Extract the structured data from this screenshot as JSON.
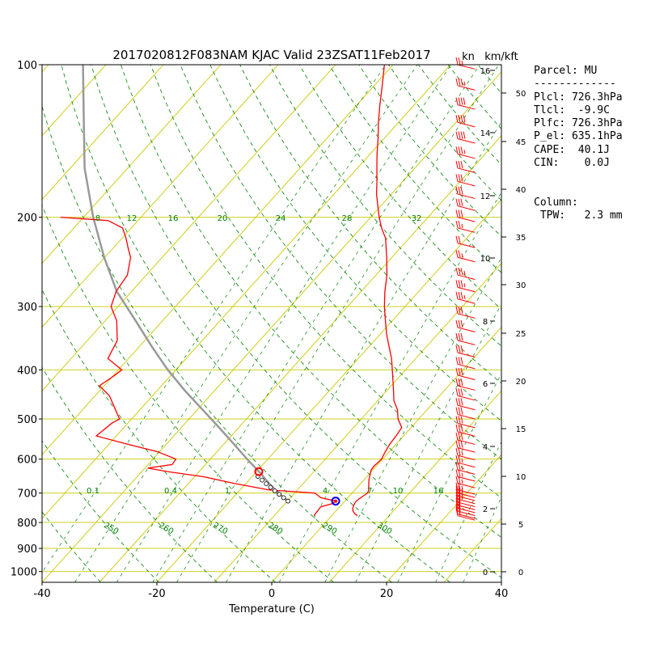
{
  "title": "2017020812F083NAM KJAC Valid 23ZSAT11Feb2017",
  "unit_kn": "kn",
  "unit_kmkft": "km/kft",
  "xlabel": "Temperature (C)",
  "params": [
    "Parcel: MU",
    "-------------",
    "Plcl: 726.3hPa",
    "Tlcl:  -9.9C",
    "Plfc: 726.3hPa",
    "P_el: 635.1hPa",
    "CAPE:  40.1J",
    "CIN:    0.0J",
    "",
    "",
    "Column:",
    " TPW:   2.3 mm"
  ],
  "chart_data": {
    "type": "skew-t",
    "xlim": [
      -40,
      40
    ],
    "ylim_hpa": [
      1050,
      100
    ],
    "x_ticks": [
      "-40",
      "-20",
      "0",
      "20",
      "40"
    ],
    "pressure_ticks": [
      "100",
      "200",
      "300",
      "400",
      "500",
      "600",
      "700",
      "800",
      "900",
      "1000"
    ],
    "km_ticks": [
      "0",
      "2",
      "4",
      "6",
      "8",
      "10",
      "12",
      "14",
      "16"
    ],
    "kft_ticks": [
      "0",
      "5",
      "10",
      "15",
      "20",
      "25",
      "30",
      "35",
      "40",
      "45",
      "50"
    ],
    "mixing_ratio_labels": [
      "0.1",
      "0.4",
      "1",
      "4",
      "7",
      "10",
      "16"
    ],
    "mixing_ratio_upper_labels": [
      "8",
      "12",
      "16",
      "20",
      "24",
      "28",
      "32"
    ],
    "dry_adiabat_labels": [
      "250",
      "260",
      "270",
      "280",
      "290",
      "300"
    ],
    "temperature": [
      [
        776,
        4.5
      ],
      [
        770,
        3.8
      ],
      [
        760,
        3.0
      ],
      [
        750,
        2.5
      ],
      [
        740,
        2.2
      ],
      [
        730,
        2.0
      ],
      [
        726,
        2.0
      ],
      [
        720,
        2.1
      ],
      [
        710,
        2.4
      ],
      [
        700,
        2.7
      ],
      [
        690,
        2.4
      ],
      [
        680,
        1.9
      ],
      [
        670,
        1.4
      ],
      [
        660,
        0.9
      ],
      [
        650,
        0.5
      ],
      [
        640,
        0.1
      ],
      [
        630,
        -0.3
      ],
      [
        620,
        -0.4
      ],
      [
        600,
        -0.2
      ],
      [
        580,
        -0.7
      ],
      [
        560,
        -1.1
      ],
      [
        540,
        -1.3
      ],
      [
        520,
        -1.6
      ],
      [
        500,
        -3.6
      ],
      [
        480,
        -5.1
      ],
      [
        460,
        -7.2
      ],
      [
        440,
        -8.8
      ],
      [
        420,
        -10.5
      ],
      [
        400,
        -12.3
      ],
      [
        380,
        -14.2
      ],
      [
        360,
        -16.5
      ],
      [
        340,
        -18.9
      ],
      [
        320,
        -21.2
      ],
      [
        300,
        -23.6
      ],
      [
        280,
        -25.9
      ],
      [
        260,
        -28.1
      ],
      [
        240,
        -30.9
      ],
      [
        220,
        -34.1
      ],
      [
        210,
        -36.4
      ],
      [
        200,
        -38.5
      ],
      [
        190,
        -40.5
      ],
      [
        180,
        -42.6
      ],
      [
        170,
        -44.5
      ],
      [
        160,
        -46.6
      ],
      [
        150,
        -48.8
      ],
      [
        140,
        -51.0
      ],
      [
        130,
        -53.5
      ],
      [
        120,
        -56.0
      ],
      [
        110,
        -58.6
      ],
      [
        100,
        -61.5
      ]
    ],
    "dewpoint": [
      [
        776,
        -3.1
      ],
      [
        760,
        -3.2
      ],
      [
        745,
        -3.3
      ],
      [
        735,
        -1.8
      ],
      [
        726,
        -1.6
      ],
      [
        715,
        -4.7
      ],
      [
        700,
        -6.5
      ],
      [
        690,
        -15.0
      ],
      [
        670,
        -22.0
      ],
      [
        650,
        -28.4
      ],
      [
        635,
        -35.5
      ],
      [
        625,
        -39.5
      ],
      [
        615,
        -35.8
      ],
      [
        600,
        -36.0
      ],
      [
        580,
        -40.4
      ],
      [
        560,
        -47.0
      ],
      [
        540,
        -53.5
      ],
      [
        510,
        -52.8
      ],
      [
        500,
        -52.1
      ],
      [
        480,
        -54.2
      ],
      [
        450,
        -57.5
      ],
      [
        430,
        -60.8
      ],
      [
        410,
        -59.8
      ],
      [
        400,
        -59.4
      ],
      [
        380,
        -63.6
      ],
      [
        350,
        -64.8
      ],
      [
        320,
        -68.0
      ],
      [
        300,
        -71.2
      ],
      [
        280,
        -72.7
      ],
      [
        260,
        -73.3
      ],
      [
        240,
        -75.5
      ],
      [
        230,
        -77.4
      ],
      [
        220,
        -79.3
      ],
      [
        210,
        -81.5
      ],
      [
        203,
        -85.2
      ],
      [
        200,
        -94.0
      ]
    ],
    "parcel": [
      [
        726,
        -9.9
      ],
      [
        700,
        -12.8
      ],
      [
        680,
        -14.9
      ],
      [
        660,
        -17.0
      ],
      [
        640,
        -19.0
      ],
      [
        635,
        -19.6
      ],
      [
        600,
        -23.6
      ],
      [
        560,
        -28.3
      ],
      [
        520,
        -33.4
      ],
      [
        480,
        -39.0
      ],
      [
        440,
        -45.1
      ],
      [
        400,
        -51.4
      ],
      [
        360,
        -57.8
      ],
      [
        320,
        -64.7
      ],
      [
        280,
        -72.6
      ],
      [
        240,
        -80.1
      ],
      [
        200,
        -88.3
      ],
      [
        160,
        -97.5
      ],
      [
        130,
        -104.8
      ],
      [
        100,
        -114.0
      ]
    ],
    "lcl": {
      "p": 726.3,
      "t": -9.9
    },
    "el": {
      "p": 635.1,
      "t": -19.6
    },
    "surface_dewpoint": {
      "p": 726,
      "t": -1.6
    },
    "wind_barbs": [
      {
        "p": 100,
        "kn": 25
      },
      {
        "p": 110,
        "kn": 35
      },
      {
        "p": 120,
        "kn": 40
      },
      {
        "p": 130,
        "kn": 40
      },
      {
        "p": 140,
        "kn": 40
      },
      {
        "p": 150,
        "kn": 35
      },
      {
        "p": 160,
        "kn": 30
      },
      {
        "p": 170,
        "kn": 30
      },
      {
        "p": 180,
        "kn": 30
      },
      {
        "p": 190,
        "kn": 30
      },
      {
        "p": 200,
        "kn": 30
      },
      {
        "p": 210,
        "kn": 25
      },
      {
        "p": 225,
        "kn": 20
      },
      {
        "p": 240,
        "kn": 25
      },
      {
        "p": 260,
        "kn": 35
      },
      {
        "p": 275,
        "kn": 35
      },
      {
        "p": 290,
        "kn": 35
      },
      {
        "p": 310,
        "kn": 30
      },
      {
        "p": 330,
        "kn": 30
      },
      {
        "p": 350,
        "kn": 30
      },
      {
        "p": 370,
        "kn": 30
      },
      {
        "p": 390,
        "kn": 30
      },
      {
        "p": 410,
        "kn": 30
      },
      {
        "p": 430,
        "kn": 30
      },
      {
        "p": 450,
        "kn": 30
      },
      {
        "p": 470,
        "kn": 30
      },
      {
        "p": 490,
        "kn": 30
      },
      {
        "p": 510,
        "kn": 30
      },
      {
        "p": 530,
        "kn": 30
      },
      {
        "p": 550,
        "kn": 30
      },
      {
        "p": 570,
        "kn": 30
      },
      {
        "p": 590,
        "kn": 25
      },
      {
        "p": 610,
        "kn": 25
      },
      {
        "p": 630,
        "kn": 25
      },
      {
        "p": 650,
        "kn": 25
      },
      {
        "p": 670,
        "kn": 25
      },
      {
        "p": 690,
        "kn": 25
      },
      {
        "p": 700,
        "kn": 25
      },
      {
        "p": 710,
        "kn": 25
      },
      {
        "p": 720,
        "kn": 25
      },
      {
        "p": 730,
        "kn": 20
      },
      {
        "p": 740,
        "kn": 20
      },
      {
        "p": 750,
        "kn": 20
      },
      {
        "p": 760,
        "kn": 20
      },
      {
        "p": 770,
        "kn": 20
      },
      {
        "p": 776,
        "kn": 15
      }
    ]
  },
  "colors": {
    "temperature": "#ff0000",
    "dewpoint": "#ff0000",
    "parcel": "#999999",
    "isotherm": "#c8c800",
    "mixing": "#008000",
    "adiabat": "#008000",
    "lcl": "#ff0000",
    "surface": "#0000ff"
  }
}
